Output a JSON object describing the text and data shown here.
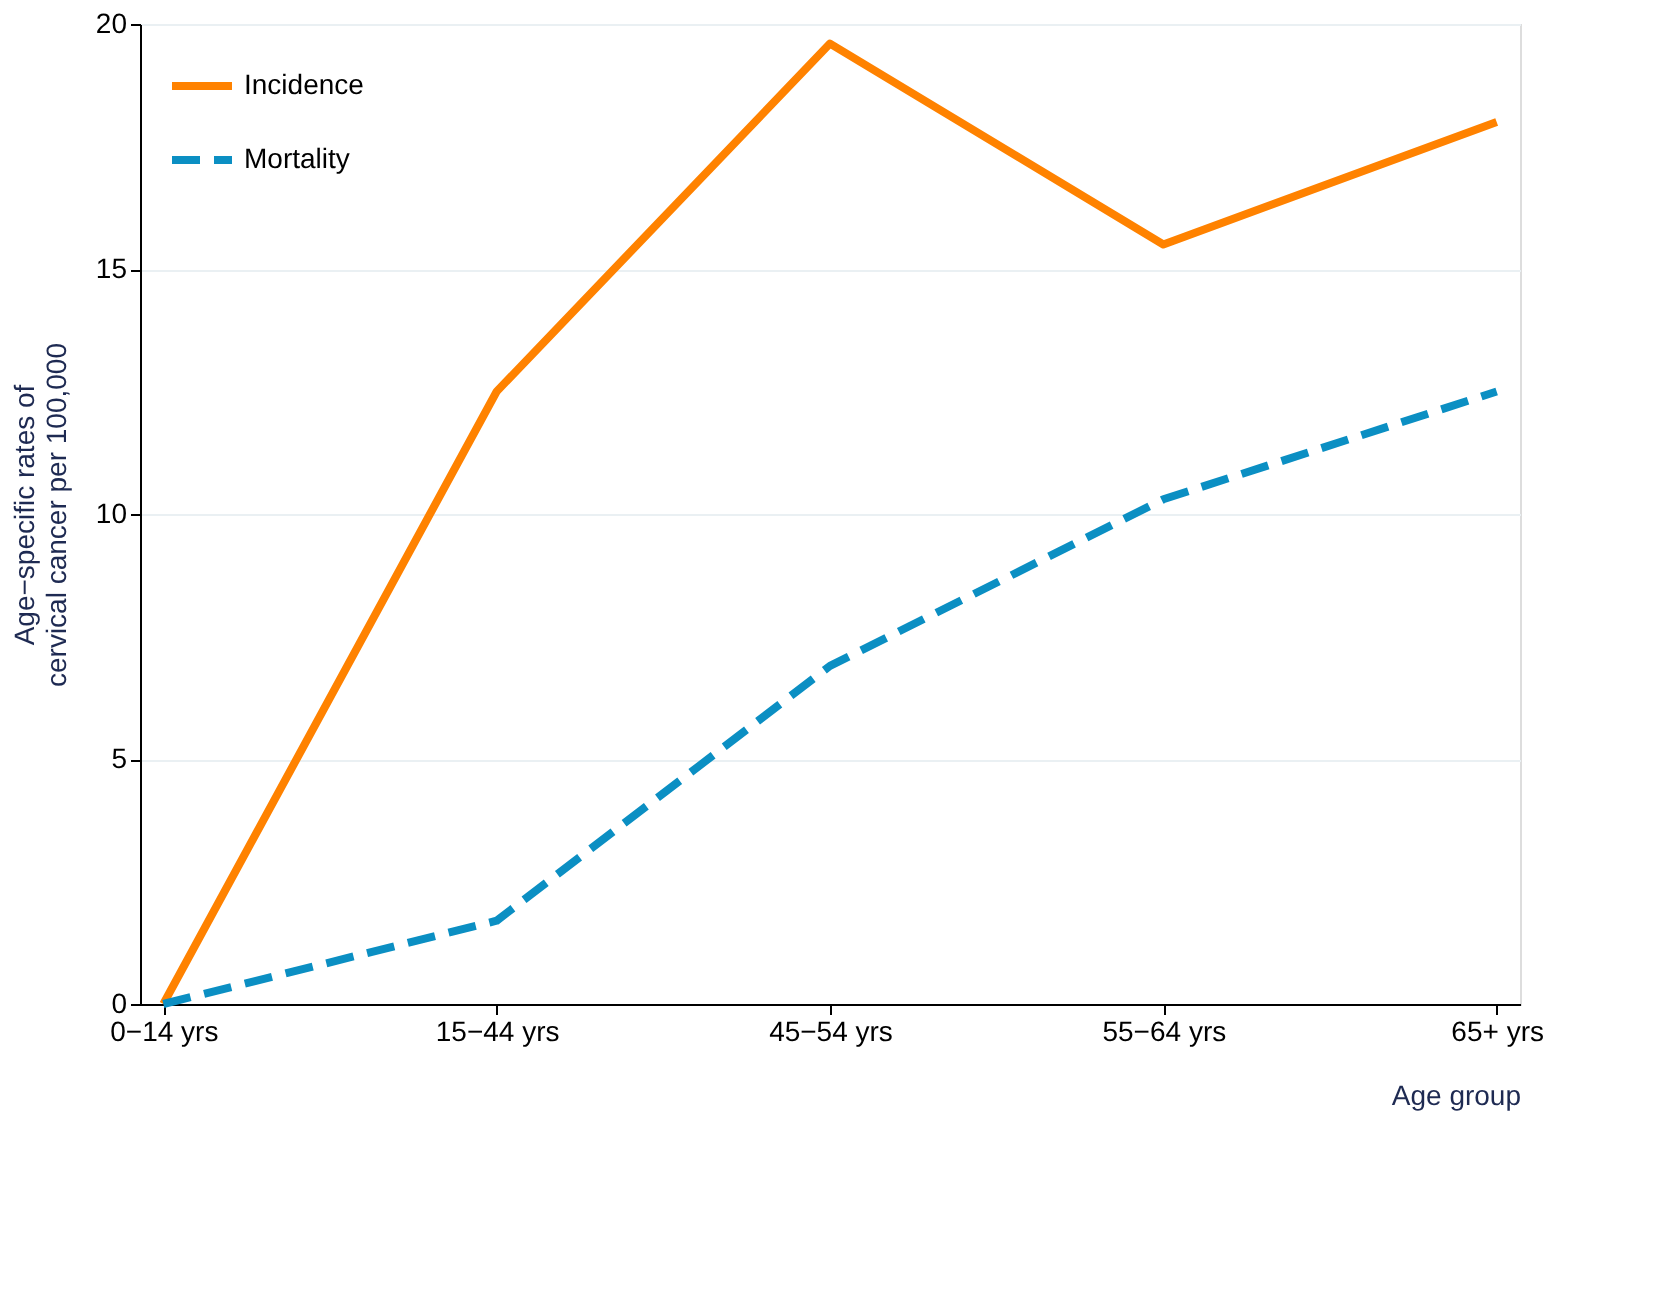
{
  "chart_data": {
    "type": "line",
    "xlabel": "Age group",
    "ylabel": "Age−specific rates of\ncervical cancer per 100,000",
    "categories": [
      "0−14 yrs",
      "15−44 yrs",
      "45−54 yrs",
      "55−64 yrs",
      "65+ yrs"
    ],
    "series": [
      {
        "name": "Incidence",
        "color": "#ff8200",
        "line_style": "solid",
        "values": [
          0,
          12.5,
          19.6,
          15.5,
          18.0
        ]
      },
      {
        "name": "Mortality",
        "color": "#0b8fc3",
        "line_style": "dashed",
        "values": [
          0,
          1.7,
          6.9,
          10.3,
          12.5
        ]
      }
    ],
    "ylim": [
      0,
      20
    ],
    "yticks": [
      0,
      5,
      10,
      15,
      20
    ],
    "grid": "y",
    "legend": "top left",
    "marker": "none"
  }
}
